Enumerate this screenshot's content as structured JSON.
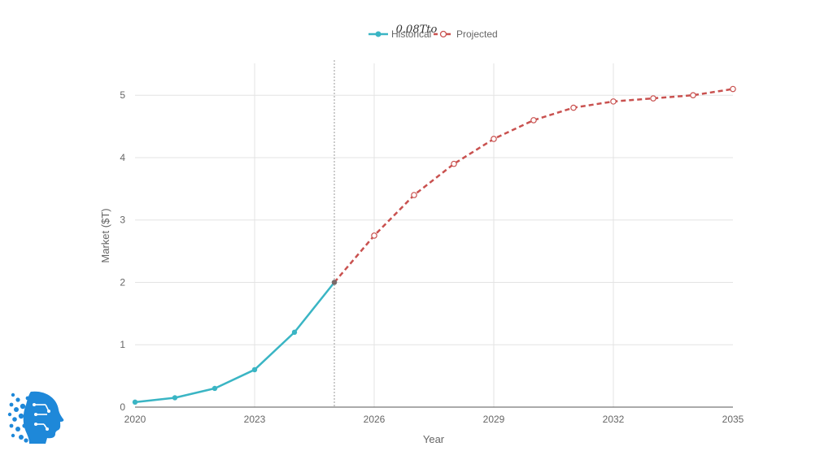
{
  "chart_data": {
    "type": "line",
    "title": "0.08Tto",
    "xlabel": "Year",
    "ylabel": "Market ($T)",
    "xlim": [
      2020,
      2035
    ],
    "ylim": [
      0,
      5.25
    ],
    "x_ticks": [
      "2020",
      "2023",
      "2026",
      "2029",
      "2032",
      "2035"
    ],
    "y_ticks": [
      "0",
      "1",
      "2",
      "3",
      "4",
      "5"
    ],
    "grid": true,
    "legend_position": "top-center",
    "divider_x": 2025,
    "series": [
      {
        "name": "Historical",
        "color": "#3ab5c4",
        "style": "solid",
        "marker": "filled-circle",
        "x": [
          2020,
          2021,
          2022,
          2023,
          2024,
          2025
        ],
        "y": [
          0.08,
          0.15,
          0.3,
          0.6,
          1.2,
          2.0
        ]
      },
      {
        "name": "Projected",
        "color": "#c9514f",
        "style": "dashed",
        "marker": "open-circle",
        "x": [
          2025,
          2026,
          2027,
          2028,
          2029,
          2030,
          2031,
          2032,
          2033,
          2034,
          2035
        ],
        "y": [
          2.0,
          2.75,
          3.4,
          3.9,
          4.3,
          4.6,
          4.8,
          4.9,
          4.95,
          5.0,
          5.1
        ]
      }
    ]
  },
  "logo": {
    "icon": "ai-head-icon",
    "color": "#1e88d9"
  }
}
